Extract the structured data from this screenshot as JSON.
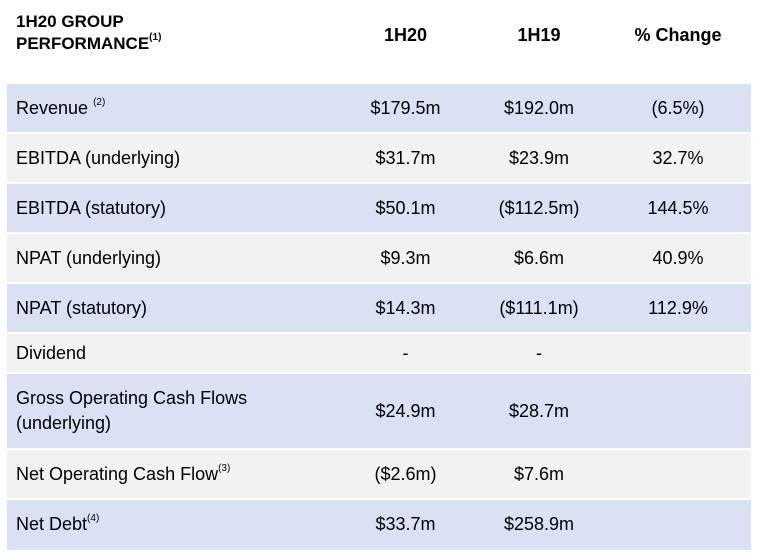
{
  "header": {
    "title_line1": "1H20 GROUP",
    "title_line2": "PERFORMANCE",
    "title_note": "(1)",
    "col1": "1H20",
    "col2": "1H19",
    "col3": "% Change"
  },
  "rows": [
    {
      "label": "Revenue ",
      "note": "(2)",
      "v1": "$179.5m",
      "v2": "$192.0m",
      "v3": "(6.5%)"
    },
    {
      "label": "EBITDA (underlying)",
      "note": "",
      "v1": "$31.7m",
      "v2": "$23.9m",
      "v3": "32.7%"
    },
    {
      "label": "EBITDA (statutory)",
      "note": "",
      "v1": "$50.1m",
      "v2": "($112.5m)",
      "v3": "144.5%"
    },
    {
      "label": "NPAT (underlying)",
      "note": "",
      "v1": "$9.3m",
      "v2": "$6.6m",
      "v3": "40.9%"
    },
    {
      "label": "NPAT (statutory)",
      "note": "",
      "v1": "$14.3m",
      "v2": "($111.1m)",
      "v3": "112.9%"
    },
    {
      "label": "Dividend",
      "note": "",
      "v1": "-",
      "v2": "-",
      "v3": ""
    },
    {
      "label_line1": "Gross Operating Cash Flows",
      "label_line2": "(underlying)",
      "v1": "$24.9m",
      "v2": "$28.7m",
      "v3": ""
    },
    {
      "label": "Net Operating Cash Flow",
      "note": "(3)",
      "v1": "($2.6m)",
      "v2": "$7.6m",
      "v3": ""
    },
    {
      "label": "Net Debt",
      "note": "(4)",
      "v1": "$33.7m",
      "v2": "$258.9m",
      "v3": ""
    }
  ]
}
